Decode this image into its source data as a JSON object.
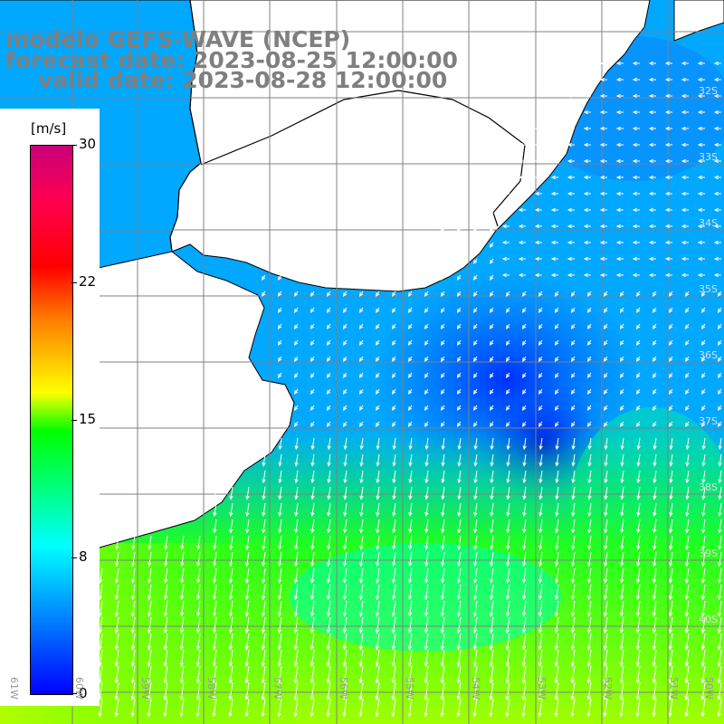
{
  "title": {
    "line1": "modelo GEFS-WAVE (NCEP)",
    "line2": "forecast date: 2023-08-25 12:00:00",
    "line3": "valid date: 2023-08-28 12:00:00"
  },
  "colorbar": {
    "unit": "[m/s]",
    "ticks": [
      "30",
      "22",
      "15",
      "8",
      "0"
    ],
    "tick_values": [
      30,
      22,
      15,
      8,
      0
    ]
  },
  "grid": {
    "lon_labels": [
      "61W",
      "60W",
      "59W",
      "58W",
      "57W",
      "56W",
      "55W",
      "54W",
      "53W",
      "52W",
      "51W",
      "50W"
    ],
    "lat_labels": [
      "32S",
      "33S",
      "34S",
      "35S",
      "36S",
      "37S",
      "38S",
      "39S",
      "40S"
    ]
  },
  "colors": {
    "grid": "#808080",
    "coast": "#000000",
    "land": "#ffffff",
    "title": "#7f7f7f"
  }
}
